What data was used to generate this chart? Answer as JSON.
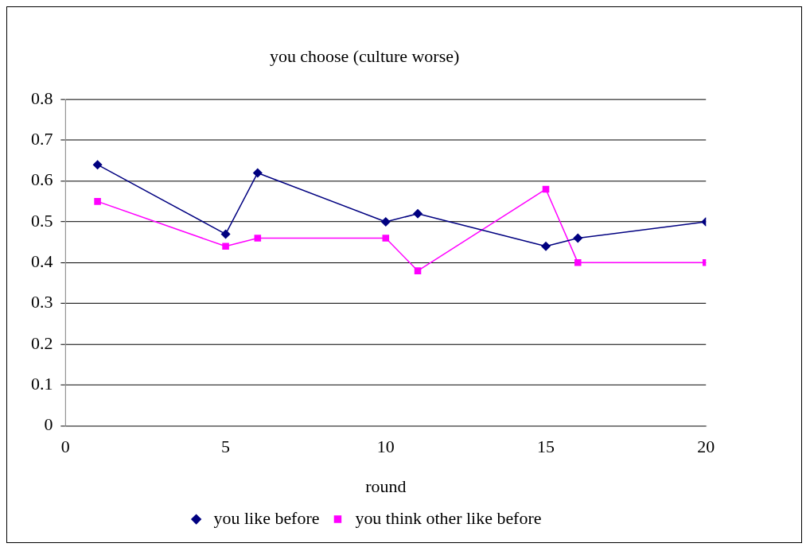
{
  "chart_data": {
    "type": "line",
    "title": "you choose (culture worse)",
    "xlabel": "round",
    "x": [
      1,
      5,
      6,
      10,
      11,
      15,
      16,
      20
    ],
    "series": [
      {
        "name": "you like before",
        "color": "#000080",
        "marker": "diamond",
        "values": [
          0.64,
          0.47,
          0.62,
          0.5,
          0.52,
          0.44,
          0.46,
          0.5
        ]
      },
      {
        "name": "you think other like before",
        "color": "#ff00ff",
        "marker": "square",
        "values": [
          0.55,
          0.44,
          0.46,
          0.46,
          0.38,
          0.58,
          0.4,
          0.4
        ]
      }
    ],
    "xlim": [
      0,
      20
    ],
    "xticks": [
      0,
      5,
      10,
      15,
      20
    ],
    "ylim": [
      0,
      0.8
    ],
    "yticks": [
      0,
      0.1,
      0.2,
      0.3,
      0.4,
      0.5,
      0.6,
      0.7,
      0.8
    ],
    "grid": "y",
    "legend": "bottom"
  }
}
